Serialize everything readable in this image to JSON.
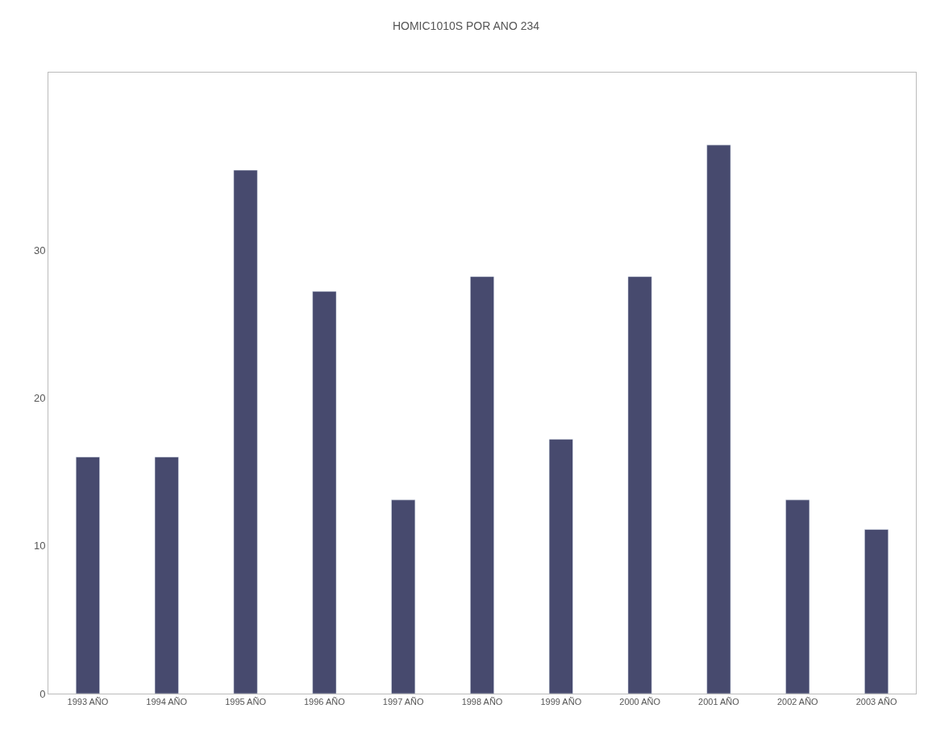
{
  "chart_data": {
    "type": "bar",
    "title": "HOMIC1010S POR ANO 234",
    "categories": [
      "1993 AÑO",
      "1994 AÑO",
      "1995 AÑO",
      "1996 AÑO",
      "1997 AÑO",
      "1998 AÑO",
      "1999 AÑO",
      "2000 AÑO",
      "2001 AÑO",
      "2002 AÑO",
      "2003 AÑO"
    ],
    "values": [
      16,
      16,
      35.4,
      27.2,
      13.1,
      28.2,
      17.2,
      28.2,
      37.1,
      13.1,
      11.1
    ],
    "color": "#474a6e",
    "ylim": [
      0,
      42
    ],
    "yticks": [
      0,
      10,
      20,
      30
    ]
  }
}
